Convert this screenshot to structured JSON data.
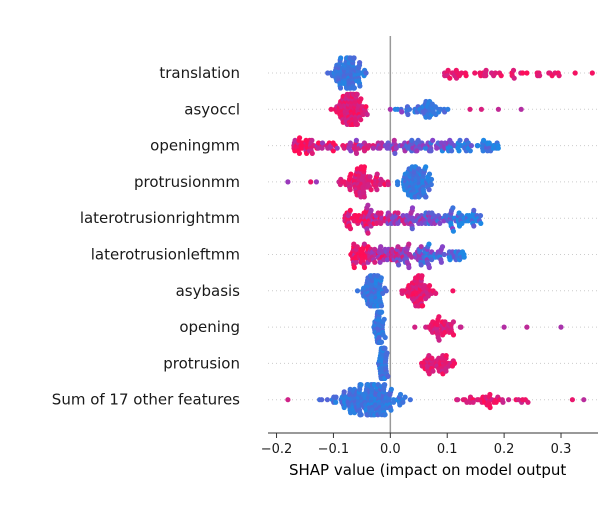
{
  "chart_data": {
    "type": "scatter",
    "subtype": "beeswarm",
    "xlabel": "SHAP value (impact on model output",
    "xlim": [
      -0.215,
      0.365
    ],
    "x_ticks": [
      -0.2,
      -0.1,
      0.0,
      0.1,
      0.2,
      0.3
    ],
    "x_tick_labels": [
      "−0.2",
      "−0.1",
      "0.0",
      "0.1",
      "0.2",
      "0.3"
    ],
    "zero_line": true,
    "grid": false,
    "colors": {
      "low": "#1e88e5",
      "high": "#ff0d57",
      "zero_line": "#999999",
      "row_guide": "#cccccc"
    },
    "features": [
      {
        "name": "translation",
        "low": {
          "center": -0.075,
          "spread": 0.065,
          "count": 110
        },
        "high": {
          "min": 0.095,
          "max": 0.355,
          "count": 45,
          "sparse": [
            0.295,
            0.325,
            0.355
          ]
        }
      },
      {
        "name": "asyoccl",
        "low": {
          "center": 0.06,
          "spread": 0.11,
          "count": 45
        },
        "high": {
          "center": -0.07,
          "spread": 0.06,
          "count": 110
        },
        "extra": [
          0.0,
          0.02,
          0.14,
          0.16,
          0.19,
          0.23
        ]
      },
      {
        "name": "openingmm",
        "mixed": {
          "min": -0.17,
          "max": 0.19,
          "count": 190
        }
      },
      {
        "name": "protrusionmm",
        "low": {
          "center": 0.04,
          "spread": 0.07,
          "count": 95
        },
        "high": {
          "center": -0.05,
          "spread": 0.09,
          "count": 80
        },
        "extra": [
          -0.18,
          -0.14,
          -0.13
        ]
      },
      {
        "name": "laterotrusionrightmm",
        "mixed": {
          "min": -0.08,
          "max": 0.16,
          "count": 185
        }
      },
      {
        "name": "laterotrusionleftmm",
        "mixed": {
          "min": -0.07,
          "max": 0.13,
          "count": 180
        }
      },
      {
        "name": "asybasis",
        "low": {
          "center": -0.03,
          "spread": 0.05,
          "count": 95
        },
        "high": {
          "center": 0.05,
          "spread": 0.06,
          "count": 75
        },
        "extra": [
          0.11
        ]
      },
      {
        "name": "opening",
        "low": {
          "center": -0.02,
          "spread": 0.02,
          "count": 70
        },
        "high": {
          "center": 0.09,
          "spread": 0.07,
          "count": 45
        },
        "extra": [
          0.2,
          0.24,
          0.3
        ]
      },
      {
        "name": "protrusion",
        "low": {
          "center": -0.012,
          "spread": 0.015,
          "count": 60
        },
        "high": {
          "center": 0.085,
          "spread": 0.07,
          "count": 50
        }
      },
      {
        "name": "Sum of 17 other features",
        "low": {
          "center": -0.04,
          "spread": 0.14,
          "count": 200
        },
        "high": {
          "center": 0.18,
          "spread": 0.16,
          "count": 40
        },
        "extra": [
          -0.18,
          0.32,
          0.34
        ]
      }
    ]
  }
}
